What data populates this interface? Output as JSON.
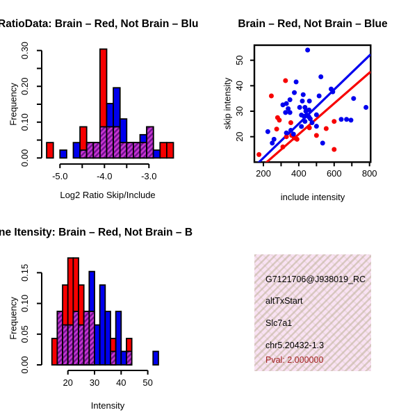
{
  "colors": {
    "red": "#f70000",
    "blue": "#0000ee",
    "purple_hatch_light": "#c835d2",
    "purple_hatch_dark": "#70128f",
    "axis_black": "#000000",
    "info_box_bg": "#f9e2f3",
    "info_box_hatch": "#beb298",
    "pval_red": "#a32222"
  },
  "panels": {
    "hist_ratio": {
      "title": "RatioData: Brain – Red, Not Brain – Blu",
      "xlabel": "Log2 Ratio Skip/Include",
      "ylabel": "Frequency"
    },
    "scatter": {
      "title": "Brain – Red, Not Brain – Blue",
      "xlabel": "include intensity",
      "ylabel": "skip intensity"
    },
    "hist_intensity": {
      "title": "ne Itensity: Brain – Red, Not Brain – B",
      "xlabel": "Intensity",
      "ylabel": "Frequency"
    },
    "info_box": {
      "lines": [
        "G7121706@J938019_RC",
        "altTxStart",
        "Slc7a1",
        "chr5.20432-1.3"
      ],
      "pval_line": "Pval: 2.000000"
    }
  },
  "chart_data": [
    {
      "type": "bar",
      "id": "hist_ratio",
      "title": "RatioData: Brain – Red, Not Brain – Blu",
      "xlabel": "Log2 Ratio Skip/Include",
      "ylabel": "Frequency",
      "bin_start": -5.3,
      "bin_width": 0.15,
      "ylim": [
        0,
        0.3
      ],
      "x_ticks": [
        -5.0,
        -4.5,
        -4.0,
        -3.5,
        -3.0
      ],
      "x_tick_labels": [
        "-5.0",
        "",
        "-4.0",
        "",
        "-3.0"
      ],
      "y_ticks": [
        0,
        0.05,
        0.1,
        0.15,
        0.2,
        0.25,
        0.3
      ],
      "y_tick_labels": [
        "0.00",
        "",
        "0.10",
        "",
        "0.20",
        "",
        "0.30"
      ],
      "series": [
        {
          "name": "Brain (red)",
          "values": [
            0.043,
            0,
            0,
            0,
            0,
            0.087,
            0.043,
            0.043,
            0.304,
            0.087,
            0.087,
            0.043,
            0.043,
            0.043,
            0.043,
            0.087,
            0,
            0.043,
            0.043
          ]
        },
        {
          "name": "Not Brain (blue)",
          "values": [
            0,
            0,
            0.022,
            0,
            0.043,
            0.022,
            0.043,
            0.043,
            0.087,
            0.152,
            0.196,
            0.109,
            0.043,
            0.043,
            0.065,
            0.087,
            0.022,
            0,
            0
          ]
        }
      ]
    },
    {
      "type": "scatter",
      "id": "scatter_intensity",
      "title": "Brain – Red, Not Brain – Blue",
      "xlabel": "include intensity",
      "ylabel": "skip intensity",
      "xlim": [
        149,
        806
      ],
      "ylim": [
        10,
        56
      ],
      "x_ticks": [
        200,
        300,
        400,
        500,
        600,
        700,
        800
      ],
      "x_tick_labels": [
        "200",
        "",
        "400",
        "",
        "600",
        "",
        "800"
      ],
      "y_ticks": [
        20,
        30,
        40,
        50
      ],
      "y_tick_labels": [
        "20",
        "30",
        "40",
        "50"
      ],
      "series": [
        {
          "name": "Brain (red)",
          "points": [
            [
              325,
              42
            ],
            [
              245,
              36
            ],
            [
              280,
              27.5
            ],
            [
              290,
              26.5
            ],
            [
              355,
              25.5
            ],
            [
              600,
              26
            ],
            [
              555,
              23.2
            ],
            [
              275,
              23
            ],
            [
              500,
              20.5
            ],
            [
              330,
              20
            ],
            [
              360,
              20.5
            ],
            [
              375,
              19.5
            ],
            [
              390,
              19
            ],
            [
              310,
              16
            ],
            [
              600,
              15
            ],
            [
              460,
              23.5
            ],
            [
              175,
              13
            ]
          ]
        },
        {
          "name": "Not Brain (blue)",
          "points": [
            [
              450,
              54
            ],
            [
              525,
              43.5
            ],
            [
              385,
              41.5
            ],
            [
              583,
              38.7
            ],
            [
              592,
              37.6
            ],
            [
              425,
              36.5
            ],
            [
              515,
              36
            ],
            [
              375,
              37.3
            ],
            [
              350,
              34.5
            ],
            [
              420,
              34
            ],
            [
              710,
              35
            ],
            [
              460,
              34
            ],
            [
              310,
              32.5
            ],
            [
              330,
              33
            ],
            [
              340,
              31
            ],
            [
              405,
              31.5
            ],
            [
              435,
              31.5
            ],
            [
              780,
              31.5
            ],
            [
              325,
              29.5
            ],
            [
              350,
              29.5
            ],
            [
              440,
              30
            ],
            [
              458,
              30.5
            ],
            [
              415,
              28.5
            ],
            [
              430,
              28
            ],
            [
              445,
              28.5
            ],
            [
              457,
              27.8
            ],
            [
              500,
              28.6
            ],
            [
              465,
              27
            ],
            [
              435,
              26
            ],
            [
              640,
              26.8
            ],
            [
              670,
              26.8
            ],
            [
              695,
              26.5
            ],
            [
              475,
              25.5
            ],
            [
              500,
              24.1
            ],
            [
              415,
              24
            ],
            [
              225,
              22
            ],
            [
              330,
              21.5
            ],
            [
              355,
              22.5
            ],
            [
              370,
              21
            ],
            [
              260,
              19
            ],
            [
              250,
              17.5
            ],
            [
              535,
              17.5
            ]
          ]
        }
      ],
      "fit_lines": [
        {
          "color": "blue",
          "x1": 160,
          "y1": 9.0,
          "x2": 806,
          "y2": 52.3
        },
        {
          "color": "red",
          "x1": 200,
          "y1": 8.9,
          "x2": 806,
          "y2": 45.5
        }
      ]
    },
    {
      "type": "bar",
      "id": "hist_intensity",
      "title": "ne Itensity: Brain – Red, Not Brain – B",
      "xlabel": "Intensity",
      "ylabel": "Frequency",
      "bin_start": 14,
      "bin_width": 2,
      "ylim": [
        0,
        0.15
      ],
      "x_ticks": [
        20,
        30,
        40,
        50
      ],
      "x_tick_labels": [
        "20",
        "30",
        "40",
        "50"
      ],
      "y_ticks": [
        0,
        0.05,
        0.1,
        0.15
      ],
      "y_tick_labels": [
        "0.00",
        "0.05",
        "0.10",
        "0.15"
      ],
      "series": [
        {
          "name": "Brain (red)",
          "values": [
            0.043,
            0.087,
            0.13,
            0.174,
            0.174,
            0.13,
            0.087,
            0.087,
            0,
            0,
            0,
            0.043,
            0,
            0,
            0.043,
            0,
            0,
            0,
            0,
            0
          ]
        },
        {
          "name": "Not Brain (blue)",
          "values": [
            0,
            0.087,
            0.065,
            0.065,
            0.087,
            0.065,
            0.087,
            0.152,
            0.065,
            0.13,
            0.087,
            0.022,
            0.087,
            0.022,
            0.022,
            0,
            0,
            0,
            0,
            0.022
          ]
        }
      ]
    }
  ]
}
